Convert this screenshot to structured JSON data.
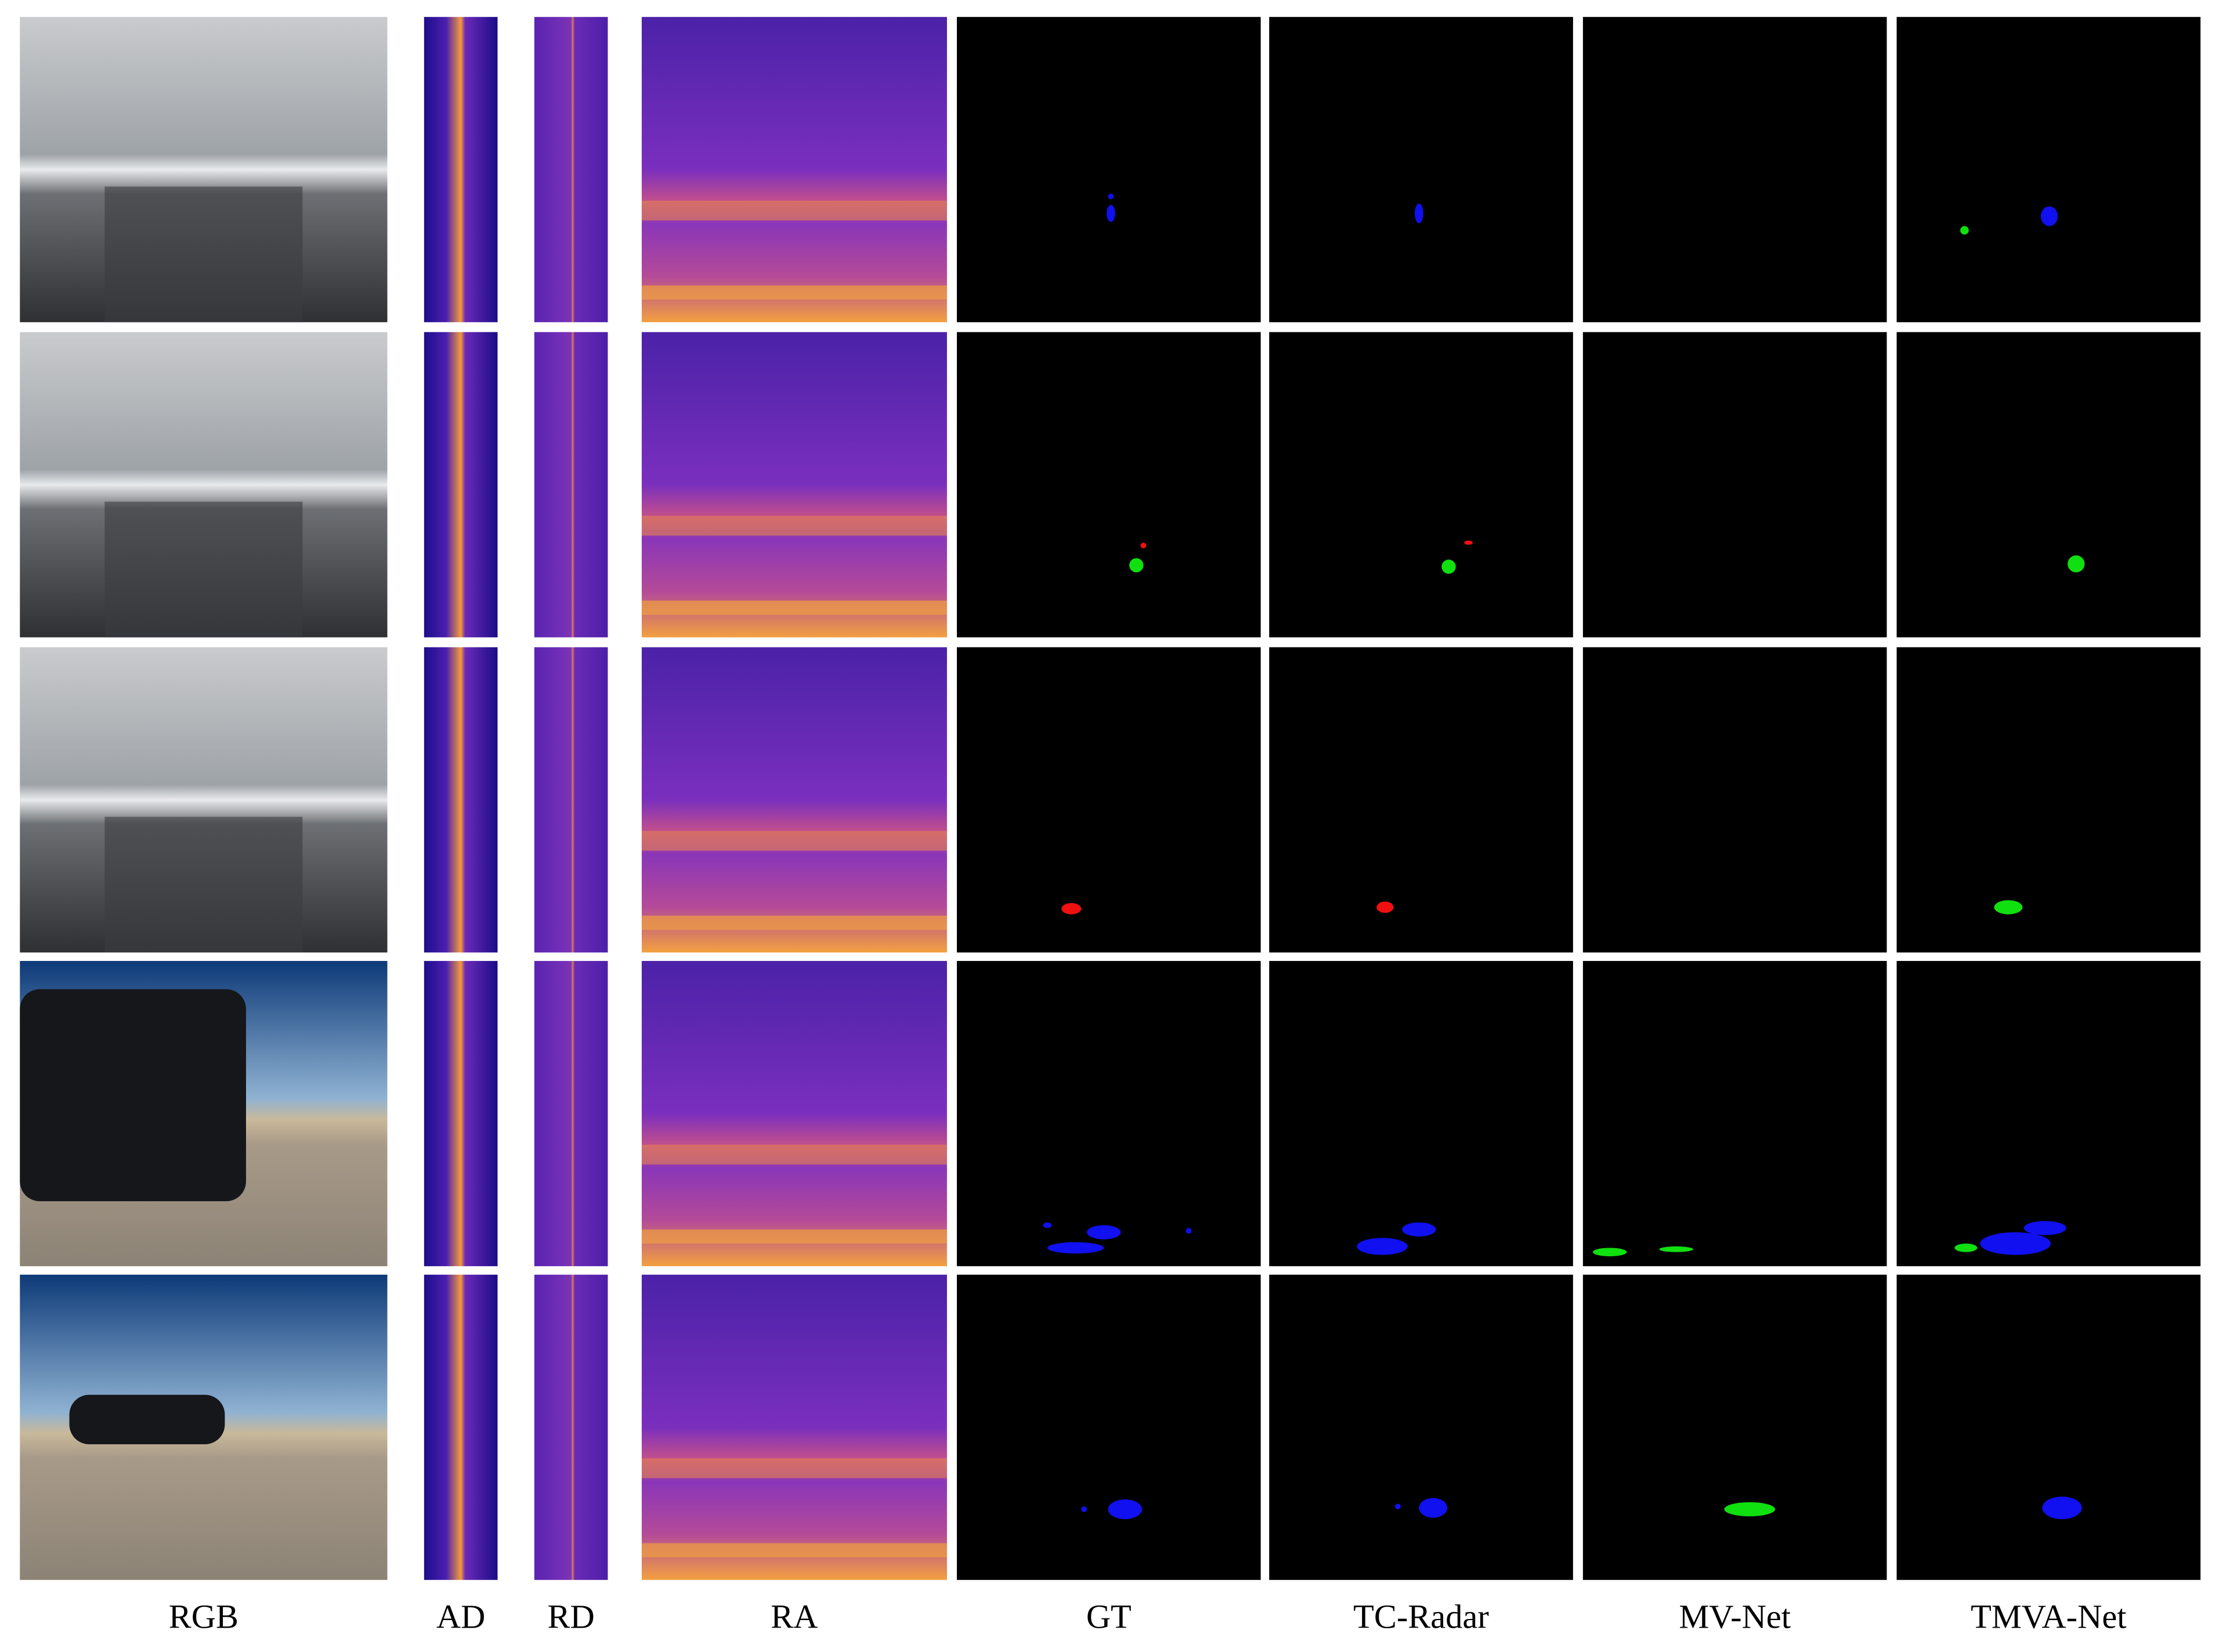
{
  "columns": [
    "RGB",
    "AD",
    "RD",
    "RA",
    "GT",
    "TC-Radar",
    "MV-Net",
    "TMVA-Net"
  ]
}
